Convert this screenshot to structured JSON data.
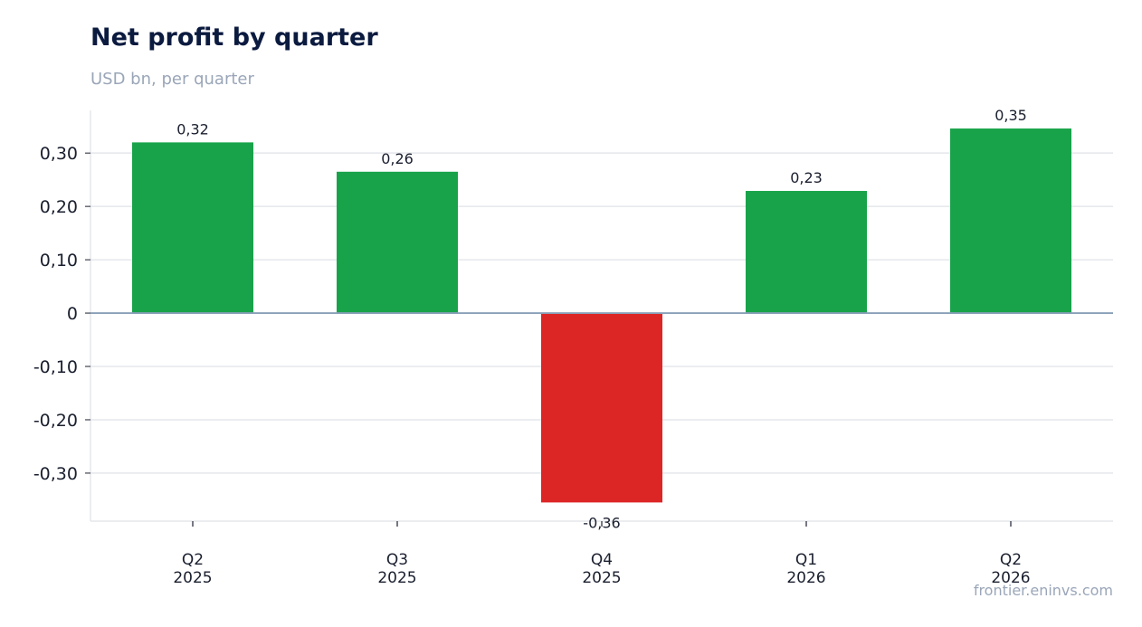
{
  "chart_data": {
    "type": "bar",
    "title": "Net profit by quarter",
    "subtitle": "USD bn, per quarter",
    "categories": [
      [
        "Q2",
        "2025"
      ],
      [
        "Q3",
        "2025"
      ],
      [
        "Q4",
        "2025"
      ],
      [
        "Q1",
        "2026"
      ],
      [
        "Q2",
        "2026"
      ]
    ],
    "values": [
      0.32,
      0.265,
      -0.355,
      0.229,
      0.346
    ],
    "value_labels": [
      "0,32",
      "0,26",
      "-0,36",
      "0,23",
      "0,35"
    ],
    "ylim": [
      -0.39,
      0.38
    ],
    "yticks": [
      {
        "value": 0.3,
        "label": "0,30"
      },
      {
        "value": 0.2,
        "label": "0,20"
      },
      {
        "value": 0.1,
        "label": "0,10"
      },
      {
        "value": 0,
        "label": "0"
      },
      {
        "value": -0.1,
        "label": "-0,10"
      },
      {
        "value": -0.2,
        "label": "-0,20"
      },
      {
        "value": -0.3,
        "label": "-0,30"
      }
    ],
    "grid": true,
    "legend": "none",
    "colors": {
      "positive": "#18a34a",
      "negative": "#dc2626",
      "zero_line": "#8aa0b8",
      "grid": "#e5e7eb",
      "tick_text": "#1a1f2e"
    }
  },
  "source": "frontier.eninvs.com"
}
